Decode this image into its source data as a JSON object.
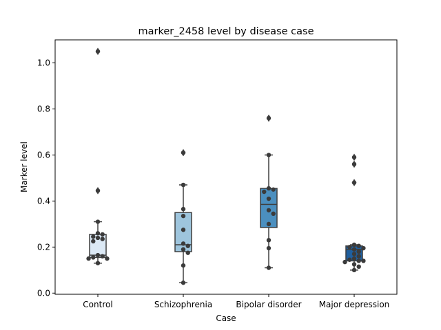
{
  "chart_data": {
    "type": "box",
    "title": "marker_2458 level by disease case",
    "xlabel": "Case",
    "ylabel": "Marker level",
    "categories": [
      "Control",
      "Schizophrenia",
      "Bipolar disorder",
      "Major depression"
    ],
    "ylim": [
      -0.005,
      1.1
    ],
    "yticks": [
      0.0,
      0.2,
      0.4,
      0.6,
      0.8,
      1.0
    ],
    "ytick_labels": [
      "0.0",
      "0.2",
      "0.4",
      "0.6",
      "0.8",
      "1.0"
    ],
    "grid": false,
    "box_colors": [
      "#dce9f5",
      "#9ec5dd",
      "#4b8fbf",
      "#1f5f9e"
    ],
    "point_color": "#3b3b3b",
    "boxes": [
      {
        "category": "Control",
        "q1": 0.155,
        "median": 0.165,
        "q3": 0.255,
        "whisker_low": 0.13,
        "whisker_high": 0.31,
        "outliers": [
          1.05,
          0.445
        ]
      },
      {
        "category": "Schizophrenia",
        "q1": 0.18,
        "median": 0.21,
        "q3": 0.35,
        "whisker_low": 0.045,
        "whisker_high": 0.47,
        "outliers": [
          0.61
        ]
      },
      {
        "category": "Bipolar disorder",
        "q1": 0.285,
        "median": 0.385,
        "q3": 0.455,
        "whisker_low": 0.11,
        "whisker_high": 0.6,
        "outliers": [
          0.76
        ]
      },
      {
        "category": "Major depression",
        "q1": 0.14,
        "median": 0.19,
        "q3": 0.205,
        "whisker_low": 0.1,
        "whisker_high": 0.21,
        "outliers": [
          0.59,
          0.56,
          0.48
        ]
      }
    ],
    "points": [
      {
        "category": "Control",
        "values": [
          1.05,
          0.445,
          0.31,
          0.26,
          0.255,
          0.245,
          0.24,
          0.235,
          0.225,
          0.165,
          0.16,
          0.155,
          0.15,
          0.15,
          0.13
        ]
      },
      {
        "category": "Schizophrenia",
        "values": [
          0.61,
          0.47,
          0.365,
          0.335,
          0.275,
          0.215,
          0.205,
          0.19,
          0.175,
          0.12,
          0.045
        ]
      },
      {
        "category": "Bipolar disorder",
        "values": [
          0.76,
          0.6,
          0.455,
          0.45,
          0.44,
          0.41,
          0.36,
          0.345,
          0.3,
          0.23,
          0.195,
          0.11
        ]
      },
      {
        "category": "Major depression",
        "values": [
          0.59,
          0.56,
          0.48,
          0.21,
          0.205,
          0.2,
          0.195,
          0.19,
          0.18,
          0.17,
          0.16,
          0.15,
          0.145,
          0.14,
          0.14,
          0.135,
          0.125,
          0.115,
          0.1
        ]
      }
    ]
  }
}
